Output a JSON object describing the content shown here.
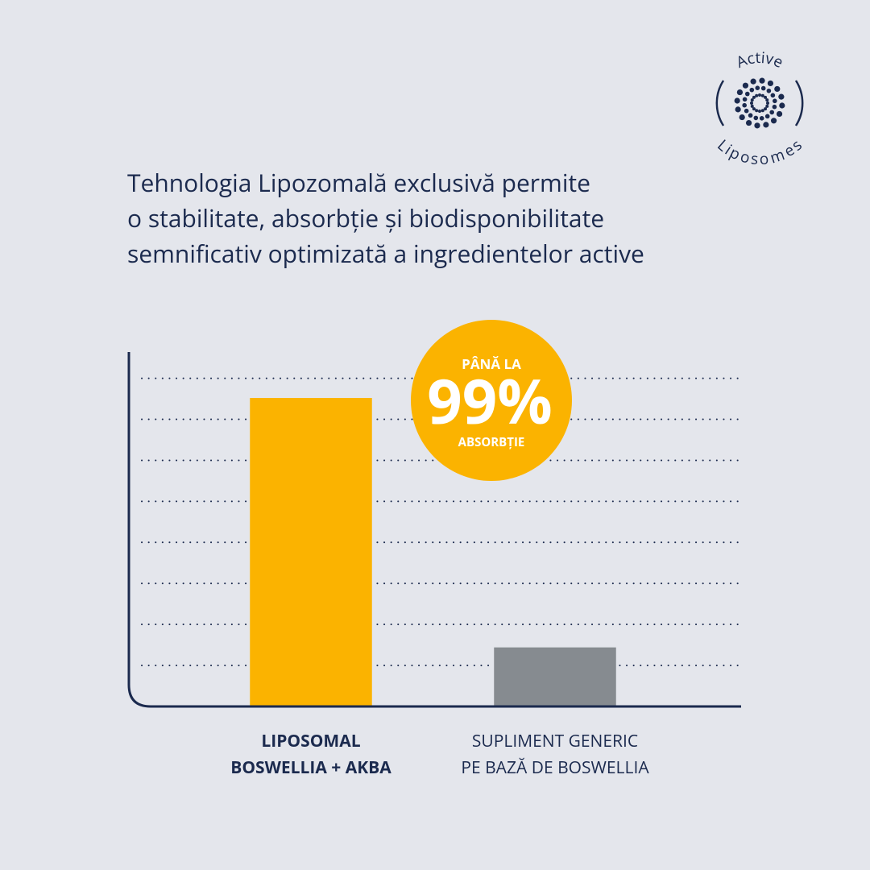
{
  "logo": {
    "top": "Active",
    "bottom": "Liposomes"
  },
  "chart_data": {
    "type": "bar",
    "title": [
      "Tehnologia Lipozomală exclusivă permite",
      "o stabilitate, absorbție și biodisponibilitate",
      "semnificativ optimizată a ingredientelor active"
    ],
    "categories": [
      "LIPOSOMAL\nBOSWELLIA + AKBA",
      "SUPLIMENT GENERIC\nPE BAZĂ DE BOSWELLIA"
    ],
    "values": [
      94,
      18
    ],
    "colors": [
      "#fbb300",
      "#868b90"
    ],
    "ylim": [
      0,
      108
    ],
    "yticks": [
      12.5,
      25,
      37.5,
      50,
      62.5,
      75,
      87.5,
      100
    ],
    "grid": true,
    "badge": {
      "top": "PÂNĂ LA",
      "value": "99%",
      "bottom": "ABSORBȚIE"
    }
  }
}
